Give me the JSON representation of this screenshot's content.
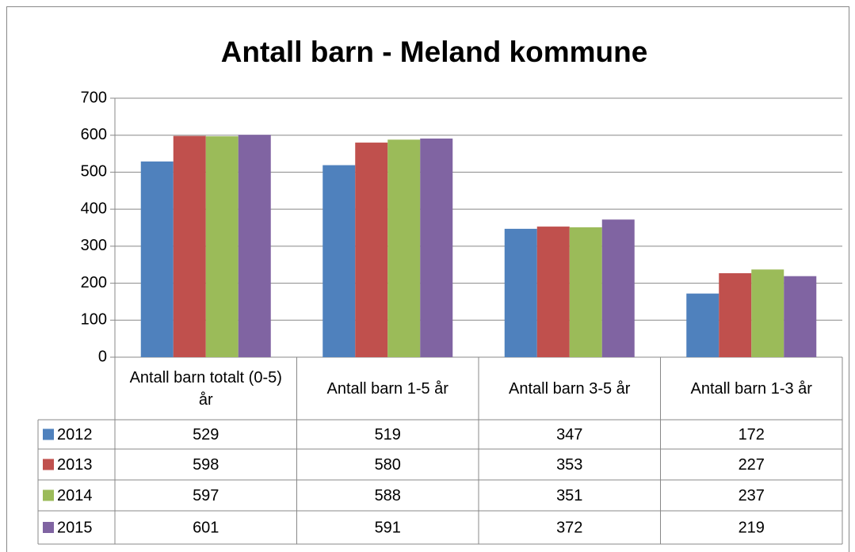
{
  "chart_data": {
    "type": "bar",
    "title": "Antall barn - Meland kommune",
    "categories": [
      "Antall barn totalt (0-5) år",
      "Antall barn 1-5 år",
      "Antall barn 3-5 år",
      "Antall barn 1-3 år"
    ],
    "series": [
      {
        "name": "2012",
        "color": "#4f81bd",
        "values": [
          529,
          519,
          347,
          172
        ]
      },
      {
        "name": "2013",
        "color": "#c0504d",
        "values": [
          598,
          580,
          353,
          227
        ]
      },
      {
        "name": "2014",
        "color": "#9bbb59",
        "values": [
          597,
          588,
          351,
          237
        ]
      },
      {
        "name": "2015",
        "color": "#8064a2",
        "values": [
          601,
          591,
          372,
          219
        ]
      }
    ],
    "ylim": [
      0,
      700
    ],
    "yticks": [
      0,
      100,
      200,
      300,
      400,
      500,
      600,
      700
    ],
    "grid": true,
    "legend": "data-table"
  }
}
